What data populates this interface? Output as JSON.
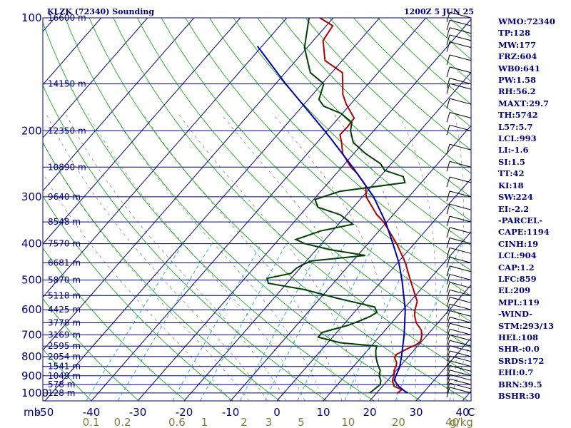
{
  "chart_data": {
    "type": "skew-t log-p sounding",
    "title_left": "KLZK (72340) Sounding",
    "title_right": "1200Z  5 JUN 25",
    "pressure_axis": {
      "label": "mb",
      "ticks": [
        100,
        200,
        300,
        400,
        500,
        600,
        700,
        800,
        900,
        1000
      ],
      "range": [
        1050,
        100
      ],
      "scale": "log"
    },
    "temperature_axis": {
      "ticks": [
        -50,
        -40,
        -30,
        -20,
        -10,
        0,
        10,
        20,
        30,
        40
      ],
      "end_label": "C",
      "skewed": true
    },
    "mixing_ratio_axis": {
      "ticks": [
        0.1,
        0.2,
        0.6,
        1.0,
        2.0,
        3.0,
        5.0,
        10.0,
        20.0,
        40.0
      ],
      "unit": "g/kg"
    },
    "height_labels": [
      {
        "p": 100,
        "text": "16600 m"
      },
      {
        "p": 150,
        "text": "14150 m"
      },
      {
        "p": 200,
        "text": "12350 m"
      },
      {
        "p": 250,
        "text": "10890 m"
      },
      {
        "p": 300,
        "text": "9640 m"
      },
      {
        "p": 350,
        "text": "8548 m"
      },
      {
        "p": 400,
        "text": "7570 m"
      },
      {
        "p": 450,
        "text": "6681 m"
      },
      {
        "p": 500,
        "text": "5870 m"
      },
      {
        "p": 550,
        "text": "5118 m"
      },
      {
        "p": 600,
        "text": "4425 m"
      },
      {
        "p": 650,
        "text": "3778 m"
      },
      {
        "p": 700,
        "text": "3169 m"
      },
      {
        "p": 750,
        "text": "2595 m"
      },
      {
        "p": 800,
        "text": "2054 m"
      },
      {
        "p": 850,
        "text": "1541 m"
      },
      {
        "p": 900,
        "text": "1049 m"
      },
      {
        "p": 950,
        "text": "578 m"
      },
      {
        "p": 1000,
        "text": "128 m"
      }
    ],
    "series": [
      {
        "name": "Temperature",
        "color": "#b00000",
        "points": [
          [
            1000,
            24.5
          ],
          [
            980,
            24.8
          ],
          [
            960,
            22.5
          ],
          [
            925,
            21.0
          ],
          [
            900,
            20.5
          ],
          [
            870,
            19.5
          ],
          [
            850,
            19.2
          ],
          [
            830,
            18.6
          ],
          [
            805,
            17.2
          ],
          [
            790,
            17.0
          ],
          [
            760,
            18.4
          ],
          [
            745,
            19.4
          ],
          [
            730,
            19.8
          ],
          [
            705,
            19.0
          ],
          [
            680,
            17.8
          ],
          [
            650,
            15.3
          ],
          [
            620,
            13.5
          ],
          [
            600,
            12.6
          ],
          [
            570,
            11.5
          ],
          [
            550,
            10.0
          ],
          [
            500,
            6.0
          ],
          [
            450,
            1.7
          ],
          [
            400,
            -3.8
          ],
          [
            350,
            -10.7
          ],
          [
            335,
            -13.5
          ],
          [
            300,
            -19.2
          ],
          [
            280,
            -21.4
          ],
          [
            260,
            -25.5
          ],
          [
            250,
            -28.1
          ],
          [
            230,
            -32.4
          ],
          [
            215,
            -34.7
          ],
          [
            205,
            -36.5
          ],
          [
            195,
            -36.4
          ],
          [
            185,
            -36.6
          ],
          [
            170,
            -40.9
          ],
          [
            160,
            -43.5
          ],
          [
            150,
            -45.5
          ],
          [
            140,
            -47.7
          ],
          [
            130,
            -53.7
          ],
          [
            115,
            -57.9
          ],
          [
            105,
            -58.6
          ],
          [
            100,
            -62.9
          ]
        ]
      },
      {
        "name": "Dewpoint",
        "color": "#004000",
        "points": [
          [
            1000,
            18.5
          ],
          [
            950,
            19.2
          ],
          [
            925,
            18.5
          ],
          [
            900,
            17.3
          ],
          [
            870,
            16.5
          ],
          [
            850,
            15.4
          ],
          [
            830,
            14.4
          ],
          [
            800,
            13.0
          ],
          [
            770,
            11.8
          ],
          [
            750,
            11.2
          ],
          [
            735,
            2.7
          ],
          [
            710,
            -3.1
          ],
          [
            690,
            -3.2
          ],
          [
            660,
            1.1
          ],
          [
            640,
            3.0
          ],
          [
            625,
            4.2
          ],
          [
            610,
            4.9
          ],
          [
            590,
            3.4
          ],
          [
            560,
            -6.1
          ],
          [
            530,
            -15.1
          ],
          [
            510,
            -24.0
          ],
          [
            495,
            -25.2
          ],
          [
            480,
            -21.0
          ],
          [
            465,
            -20.8
          ],
          [
            455,
            -20.1
          ],
          [
            445,
            -19.0
          ],
          [
            430,
            -8.3
          ],
          [
            415,
            -17.0
          ],
          [
            400,
            -23.6
          ],
          [
            390,
            -26.3
          ],
          [
            370,
            -22.6
          ],
          [
            355,
            -16.9
          ],
          [
            335,
            -21.4
          ],
          [
            320,
            -27.6
          ],
          [
            305,
            -29.7
          ],
          [
            290,
            -25.9
          ],
          [
            275,
            -13.5
          ],
          [
            265,
            -15.0
          ],
          [
            255,
            -20.2
          ],
          [
            245,
            -22.3
          ],
          [
            230,
            -27.5
          ],
          [
            215,
            -32.2
          ],
          [
            200,
            -35.0
          ],
          [
            190,
            -36.3
          ],
          [
            180,
            -40.2
          ],
          [
            172,
            -45.4
          ],
          [
            165,
            -47.7
          ],
          [
            150,
            -49.6
          ],
          [
            140,
            -54.6
          ],
          [
            120,
            -60.6
          ],
          [
            100,
            -65.2
          ]
        ]
      },
      {
        "name": "Parcel",
        "color": "#0000b0",
        "points": [
          [
            1000,
            26.8
          ],
          [
            993,
            26.0
          ],
          [
            960,
            23.5
          ],
          [
            925,
            21.4
          ],
          [
            904,
            21.0
          ],
          [
            859,
            20.2
          ],
          [
            850,
            20.0
          ],
          [
            800,
            18.5
          ],
          [
            700,
            15.0
          ],
          [
            600,
            10.5
          ],
          [
            500,
            4.2
          ],
          [
            450,
            0.3
          ],
          [
            400,
            -4.6
          ],
          [
            350,
            -10.3
          ],
          [
            300,
            -17.6
          ],
          [
            250,
            -27.7
          ],
          [
            209,
            -38.0
          ],
          [
            200,
            -40.6
          ],
          [
            150,
            -57.8
          ],
          [
            119,
            -71.0
          ]
        ]
      }
    ],
    "wind_barbs": {
      "color": "#000000",
      "levels": [
        1000,
        975,
        950,
        925,
        900,
        875,
        850,
        825,
        800,
        775,
        750,
        725,
        700,
        675,
        650,
        625,
        600,
        575,
        550,
        525,
        500,
        475,
        450,
        425,
        400,
        375,
        350,
        325,
        300,
        275,
        250,
        225,
        200,
        185,
        170,
        155,
        150,
        140,
        130,
        120,
        115,
        110,
        105,
        100
      ]
    },
    "colors": {
      "isotherm": "#000080",
      "isobar": "#000080",
      "dry_adiabat": "#00a000",
      "moist_adiabat": "#000000",
      "mixing_ratio": "#00a0c0"
    },
    "grid": true
  },
  "indices": [
    "WMO:72340",
    "TP:128",
    "MW:177",
    "FRZ:604",
    "WB0:641",
    "PW:1.58",
    "RH:56.2",
    "MAXT:29.7",
    "TH:5742",
    "L57:5.7",
    "LCL:993",
    "LI:-1.6",
    "SI:1.5",
    "TT:42",
    "KI:18",
    "SW:224",
    "EI:-2.2",
    "-PARCEL-",
    "CAPE:1194",
    "CINH:19",
    "LCL:904",
    "CAP:1.2",
    "LFC:859",
    "EL:209",
    "MPL:119",
    "-WIND-",
    "STM:293/13",
    "HEL:108",
    "SHR-:0.0",
    "SRDS:172",
    "EHI:0.7",
    "BRN:39.5",
    "BSHR:30"
  ]
}
